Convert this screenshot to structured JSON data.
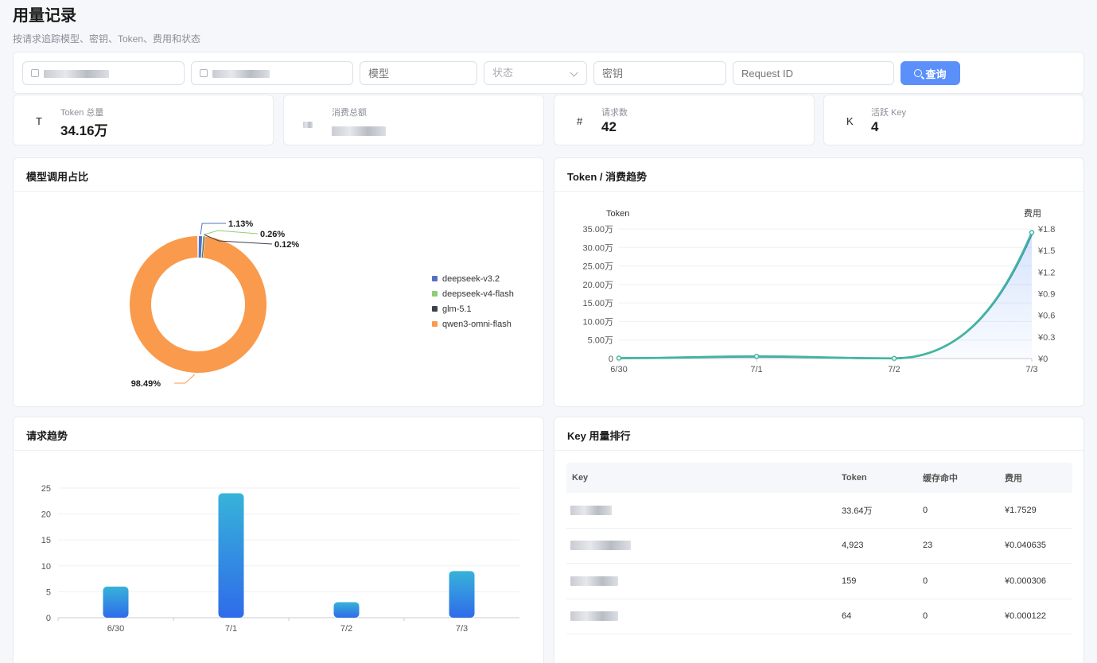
{
  "page": {
    "title": "用量记录",
    "subtitle": "按请求追踪模型、密钥、Token、费用和状态"
  },
  "filters": {
    "model_placeholder": "模型",
    "status_placeholder": "状态",
    "key_placeholder": "密钥",
    "request_id_placeholder": "Request ID",
    "query_label": "查询"
  },
  "stats": [
    {
      "icon": "T",
      "label": "Token 总量",
      "value": "34.16万"
    },
    {
      "icon": "",
      "label": "消费总额",
      "value": ""
    },
    {
      "icon": "#",
      "label": "请求数",
      "value": "42"
    },
    {
      "icon": "K",
      "label": "活跃 Key",
      "value": "4"
    }
  ],
  "model_chart": {
    "title": "模型调用占比",
    "chart_data": {
      "type": "pie",
      "categories": [
        "deepseek-v3.2",
        "deepseek-v4-flash",
        "glm-5.1",
        "qwen3-omni-flash"
      ],
      "values": [
        1.13,
        0.26,
        0.12,
        98.49
      ],
      "labels": [
        "1.13%",
        "0.26%",
        "0.12%",
        "98.49%"
      ],
      "colors": [
        "#5470c6",
        "#91cc75",
        "#3b4150",
        "#fa9a4c"
      ],
      "legend": "right"
    }
  },
  "trend_chart": {
    "title": "Token / 消费趋势",
    "chart_data": {
      "type": "line",
      "x": [
        "6/30",
        "7/1",
        "7/2",
        "7/3"
      ],
      "ylabel": "Token",
      "y2label": "费用",
      "yticks": [
        "0",
        "5.00万",
        "10.00万",
        "15.00万",
        "20.00万",
        "25.00万",
        "30.00万",
        "35.00万"
      ],
      "y2ticks": [
        "¥0",
        "¥0.3",
        "¥0.6",
        "¥0.9",
        "¥1.2",
        "¥1.5",
        "¥1.8"
      ],
      "ylim": [
        0,
        350000
      ],
      "y2lim": [
        0,
        1.8
      ],
      "series": [
        {
          "values": [
            1000,
            5000,
            600,
            336400
          ],
          "color": "#3b6fd4"
        },
        {
          "values": [
            0.005,
            0.03,
            0.002,
            1.75
          ],
          "color": "#3fb89a"
        }
      ]
    }
  },
  "requests_chart": {
    "title": "请求趋势",
    "chart_data": {
      "type": "bar",
      "categories": [
        "6/30",
        "7/1",
        "7/2",
        "7/3"
      ],
      "values": [
        6,
        24,
        3,
        9
      ],
      "yticks": [
        "0",
        "5",
        "10",
        "15",
        "20",
        "25"
      ],
      "ylim": [
        0,
        25
      ]
    }
  },
  "key_ranking": {
    "title": "Key 用量排行",
    "columns": [
      "Key",
      "Token",
      "缓存命中",
      "费用"
    ],
    "rows": [
      {
        "token": "33.64万",
        "cache": "0",
        "cost": "¥1.7529"
      },
      {
        "token": "4,923",
        "cache": "23",
        "cost": "¥0.040635"
      },
      {
        "token": "159",
        "cache": "0",
        "cost": "¥0.000306"
      },
      {
        "token": "64",
        "cache": "0",
        "cost": "¥0.000122"
      }
    ]
  }
}
